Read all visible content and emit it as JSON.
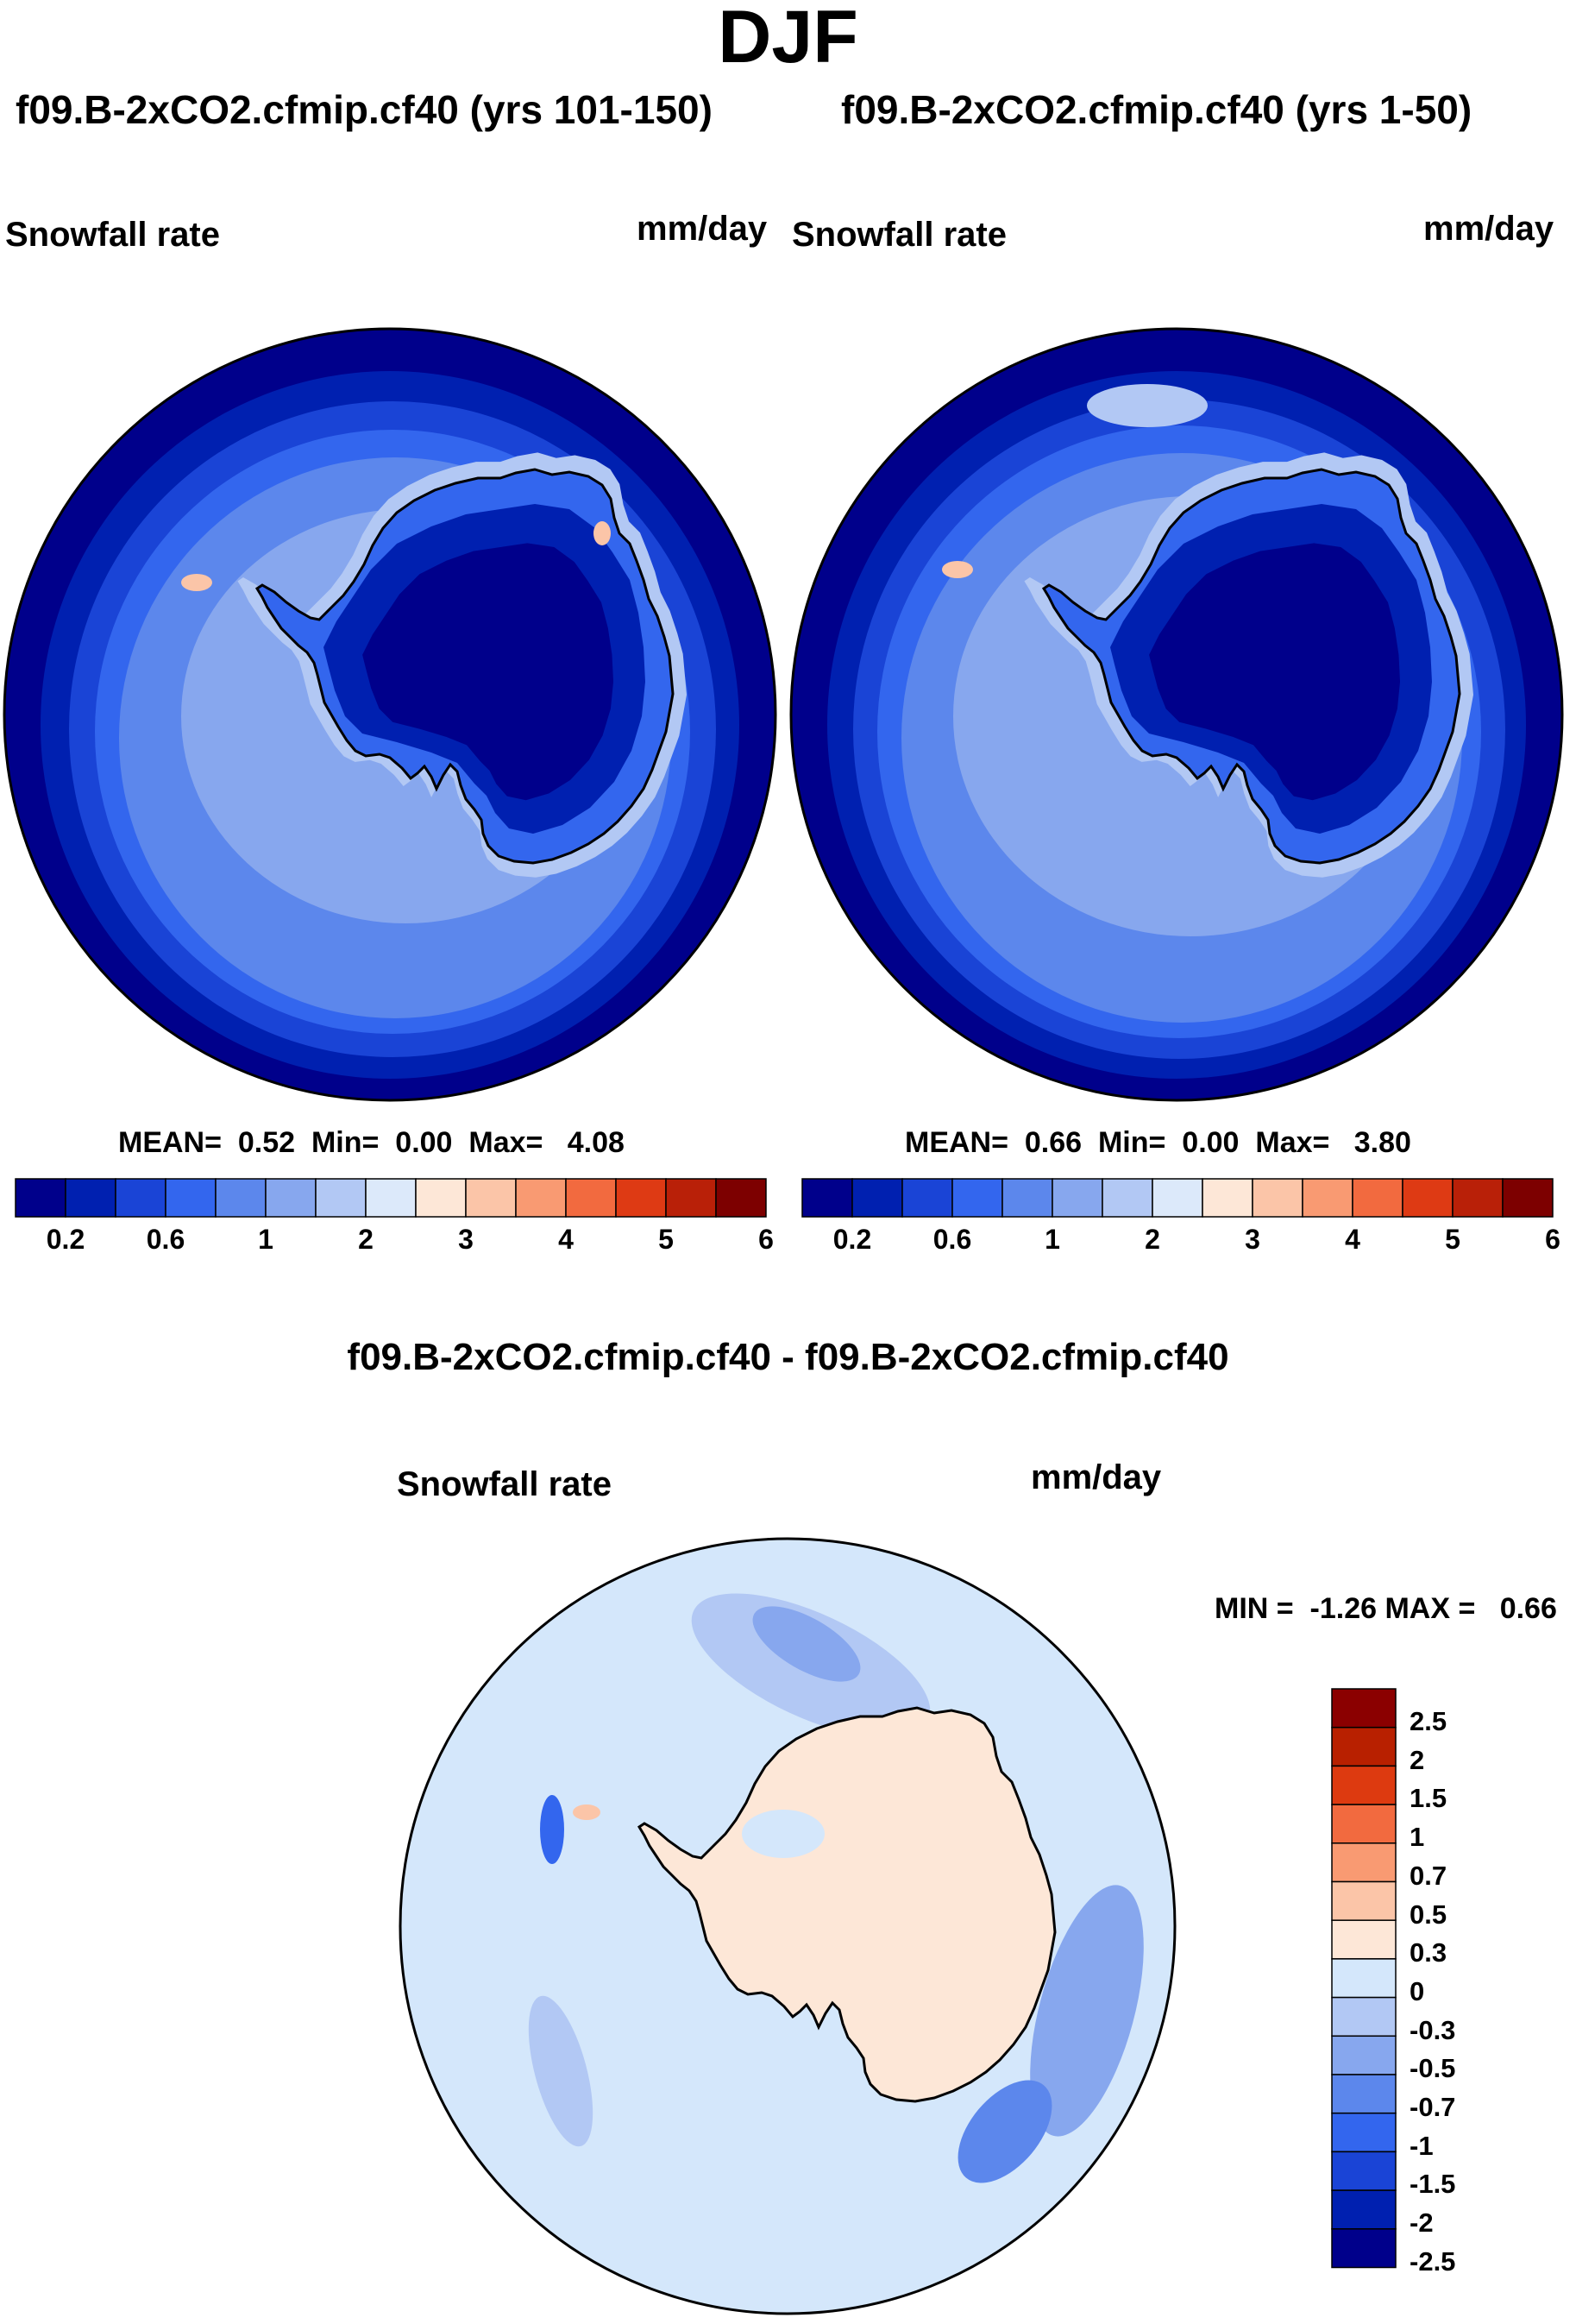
{
  "season": "DJF",
  "panels": [
    {
      "title": "f09.B-2xCO2.cfmip.cf40 (yrs 101-150)",
      "variable": "Snowfall rate",
      "units": "mm/day",
      "stats": {
        "mean_label": "MEAN=",
        "mean": "0.52",
        "min_label": "Min=",
        "min": "0.00",
        "max_label": "Max=",
        "max": "4.08"
      }
    },
    {
      "title": "f09.B-2xCO2.cfmip.cf40 (yrs 1-50)",
      "variable": "Snowfall rate",
      "units": "mm/day",
      "stats": {
        "mean_label": "MEAN=",
        "mean": "0.66",
        "min_label": "Min=",
        "min": "0.00",
        "max_label": "Max=",
        "max": "3.80"
      }
    }
  ],
  "colorbar": {
    "colors": [
      "#00008b",
      "#0020b0",
      "#1a44d6",
      "#3366ee",
      "#5c87ec",
      "#87a7ee",
      "#b2c8f4",
      "#dce9fa",
      "#fde7d7",
      "#fbc5a8",
      "#f99a72",
      "#f26a3f",
      "#de3a14",
      "#b92008",
      "#7d0000"
    ],
    "tick_labels": [
      "0.2",
      "0.6",
      "1",
      "2",
      "3",
      "4",
      "5",
      "6"
    ]
  },
  "difference": {
    "title": "f09.B-2xCO2.cfmip.cf40 - f09.B-2xCO2.cfmip.cf40",
    "variable": "Snowfall rate",
    "units": "mm/day",
    "minmax": {
      "min_label": "MIN =",
      "min": "-1.26",
      "max_label": "MAX =",
      "max": "0.66"
    },
    "colorbar_colors": [
      "#8b0000",
      "#b82000",
      "#dd3a10",
      "#f26a3f",
      "#f99a72",
      "#fbc5a8",
      "#fde7d7",
      "#d4e7fb",
      "#b2c8f4",
      "#87a7ee",
      "#5c87ec",
      "#3366ee",
      "#1a44d6",
      "#0020b0",
      "#00008b"
    ],
    "tick_labels": [
      "2.5",
      "2",
      "1.5",
      "1",
      "0.7",
      "0.5",
      "0.3",
      "0",
      "-0.3",
      "-0.5",
      "-0.7",
      "-1",
      "-1.5",
      "-2",
      "-2.5"
    ]
  }
}
